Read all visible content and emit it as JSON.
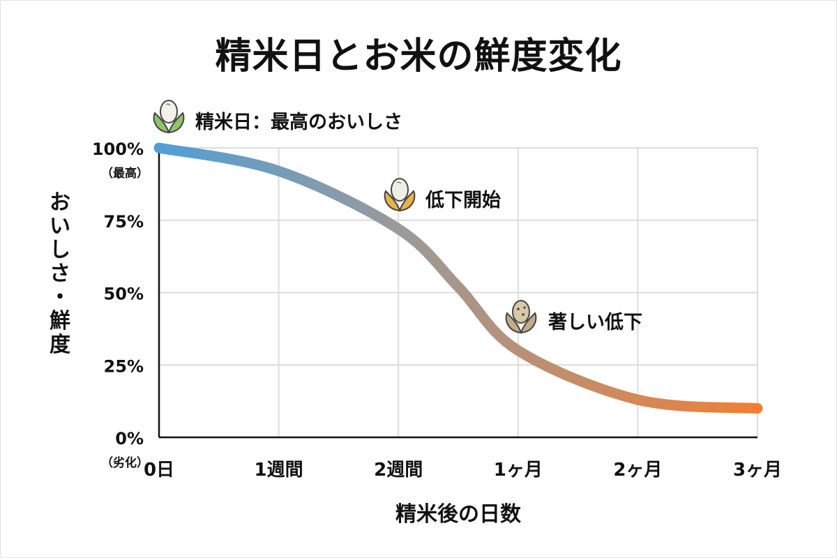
{
  "title": "精米日とお米の鮮度変化",
  "chart_data": {
    "type": "line",
    "title": "精米日とお米の鮮度変化",
    "xlabel": "精米後の日数",
    "ylabel": "おいしさ・鮮度",
    "categories": [
      "0日",
      "1週間",
      "2週間",
      "1ヶ月",
      "2ヶ月",
      "3ヶ月"
    ],
    "yticks": [
      {
        "value": 100,
        "label": "100%",
        "sublabel": "（最高）"
      },
      {
        "value": 75,
        "label": "75%",
        "sublabel": ""
      },
      {
        "value": 50,
        "label": "50%",
        "sublabel": ""
      },
      {
        "value": 25,
        "label": "25%",
        "sublabel": ""
      },
      {
        "value": 0,
        "label": "0%",
        "sublabel": "（劣化）"
      }
    ],
    "ylim": [
      0,
      100
    ],
    "grid": true,
    "series": [
      {
        "values": [
          {
            "x": 0,
            "y": 100
          },
          {
            "x": 1,
            "y": 92
          },
          {
            "x": 2,
            "y": 72
          },
          {
            "x": 2.5,
            "y": 52
          },
          {
            "x": 3,
            "y": 30
          },
          {
            "x": 4,
            "y": 13
          },
          {
            "x": 5,
            "y": 10
          }
        ]
      }
    ],
    "colors": {
      "start": "#4f9fd6",
      "mid": "#9a9a9a",
      "end": "#f07f35"
    },
    "annotations": [
      {
        "label": "精米日：最高のおいしさ",
        "icon": "fresh-rice-icon"
      },
      {
        "label": "低下開始",
        "icon": "aging-rice-icon"
      },
      {
        "label": "著しい低下",
        "icon": "old-rice-icon"
      }
    ]
  }
}
